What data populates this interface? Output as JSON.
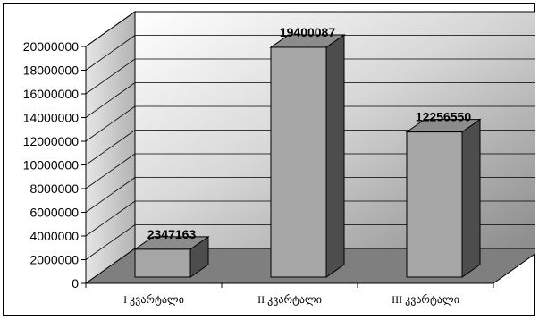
{
  "chart_data": {
    "type": "bar",
    "style": "3d-column",
    "categories": [
      "I  კვარტალი",
      "II  კვარტალი",
      "III  კვარტალი"
    ],
    "values": [
      2347163,
      19400087,
      12256550
    ],
    "data_labels": [
      "2347163",
      "19400087",
      "12256550"
    ],
    "ylim": [
      0,
      20000000
    ],
    "yticks": [
      0,
      2000000,
      4000000,
      6000000,
      8000000,
      10000000,
      12000000,
      14000000,
      16000000,
      18000000,
      20000000
    ],
    "ytick_labels": [
      "0",
      "2000000",
      "4000000",
      "6000000",
      "8000000",
      "10000000",
      "12000000",
      "14000000",
      "16000000",
      "18000000",
      "20000000"
    ],
    "grid": true,
    "legend": "none",
    "colors": {
      "bar_front": "#a6a6a6",
      "bar_side": "#4d4d4d",
      "bar_top": "#8c8c8c",
      "floor": "#7f7f7f",
      "side_wall": "#c0c0c0",
      "back_wall_light": "#ffffff",
      "back_wall_dark": "#8a8a8a"
    }
  }
}
